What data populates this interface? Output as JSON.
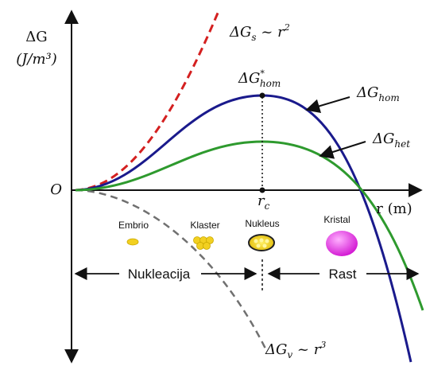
{
  "axes": {
    "y_label_main": "ΔG",
    "y_label_unit": "(J/m³)",
    "x_label": "r (m)",
    "origin_label": "O",
    "critical_radius": {
      "base": "r",
      "sub": "c"
    }
  },
  "annotations": {
    "surface_term": {
      "delta": "ΔG",
      "sub": "s",
      "rest": " ~ r",
      "sup": "2"
    },
    "volume_term": {
      "delta": "ΔG",
      "sub": "v",
      "rest": " ~ r",
      "sup": "3"
    },
    "barrier_peak": {
      "delta": "ΔG",
      "sup": "*",
      "sub": "hom"
    },
    "homogeneous_curve": {
      "delta": "ΔG",
      "sub": "hom"
    },
    "heterogeneous_curve": {
      "delta": "ΔG",
      "sub": "het"
    }
  },
  "stages": {
    "embryo": "Embrio",
    "cluster": "Klaster",
    "nucleus": "Nukleus",
    "crystal": "Kristal"
  },
  "phases": {
    "nucleation": "Nukleacija",
    "growth": "Rast"
  },
  "colors": {
    "homogeneous": "#1a1a8c",
    "heterogeneous": "#2e9a2e",
    "surface": "#d42020",
    "volume": "#707070",
    "particle": "#f2d020",
    "crystal": "#e616e6"
  }
}
